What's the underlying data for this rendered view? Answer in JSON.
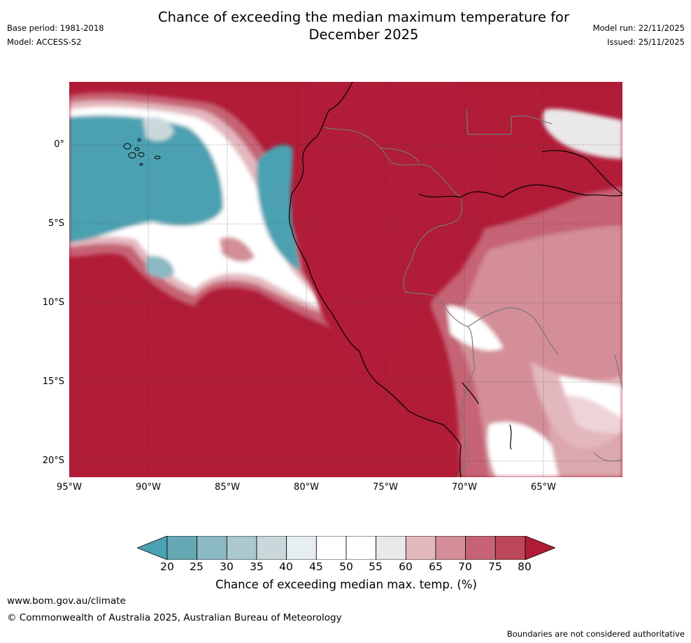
{
  "header": {
    "title_line1": "Chance of exceeding the median maximum temperature for",
    "title_line2": "December 2025",
    "base_period": "Base period: 1981-2018",
    "model": "Model: ACCESS-S2",
    "model_run": "Model run: 22/11/2025",
    "issued": "Issued: 25/11/2025"
  },
  "map": {
    "lat_labels": [
      "0°",
      "5°S",
      "10°S",
      "15°S",
      "20°S"
    ],
    "lon_labels": [
      "95°W",
      "90°W",
      "85°W",
      "80°W",
      "75°W",
      "70°W",
      "65°W"
    ],
    "extent": {
      "lon_min": -95,
      "lon_max": -60,
      "lat_min": -21,
      "lat_max": 4
    }
  },
  "legend": {
    "ticks": [
      "20",
      "25",
      "30",
      "35",
      "40",
      "45",
      "50",
      "55",
      "60",
      "65",
      "70",
      "75",
      "80"
    ],
    "colors": [
      "#66a9b5",
      "#8ab9c3",
      "#aac8ce",
      "#cad8db",
      "#e7eef0",
      "#ffffff",
      "#ffffff",
      "#ebe8e9",
      "#e3b7be",
      "#d38e98",
      "#c66474",
      "#bc4758"
    ],
    "under_color": "#4ba1b1",
    "over_color": "#b11c37",
    "title": "Chance of exceeding median max. temp. (%)"
  },
  "footer": {
    "url": "www.bom.gov.au/climate",
    "copyright": "© Commonwealth of Australia 2025, Australian Bureau of Meteorology",
    "note": "Boundaries are not considered authoritative"
  }
}
